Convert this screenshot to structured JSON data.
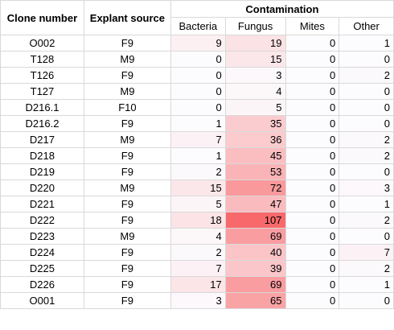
{
  "header": {
    "clone_number": "Clone number",
    "explant_source": "Explant source",
    "contamination": "Contamination",
    "bacteria": "Bacteria",
    "fungus": "Fungus",
    "mites": "Mites",
    "other": "Other"
  },
  "colors": {
    "heat_max": "#f8696b",
    "heat_min": "#fcfcff",
    "grid": "#d9d9d9"
  },
  "rows": [
    {
      "clone": "O002",
      "source": "F9",
      "bacteria": 9,
      "fungus": 19,
      "mites": 0,
      "other": 1
    },
    {
      "clone": "T128",
      "source": "M9",
      "bacteria": 0,
      "fungus": 15,
      "mites": 0,
      "other": 0
    },
    {
      "clone": "T126",
      "source": "F9",
      "bacteria": 0,
      "fungus": 3,
      "mites": 0,
      "other": 2
    },
    {
      "clone": "T127",
      "source": "M9",
      "bacteria": 0,
      "fungus": 4,
      "mites": 0,
      "other": 0
    },
    {
      "clone": "D216.1",
      "source": "F10",
      "bacteria": 0,
      "fungus": 5,
      "mites": 0,
      "other": 0
    },
    {
      "clone": "D216.2",
      "source": "F9",
      "bacteria": 1,
      "fungus": 35,
      "mites": 0,
      "other": 0
    },
    {
      "clone": "D217",
      "source": "M9",
      "bacteria": 7,
      "fungus": 36,
      "mites": 0,
      "other": 2
    },
    {
      "clone": "D218",
      "source": "F9",
      "bacteria": 1,
      "fungus": 45,
      "mites": 0,
      "other": 2
    },
    {
      "clone": "D219",
      "source": "F9",
      "bacteria": 2,
      "fungus": 53,
      "mites": 0,
      "other": 0
    },
    {
      "clone": "D220",
      "source": "M9",
      "bacteria": 15,
      "fungus": 72,
      "mites": 0,
      "other": 3
    },
    {
      "clone": "D221",
      "source": "F9",
      "bacteria": 5,
      "fungus": 47,
      "mites": 0,
      "other": 1
    },
    {
      "clone": "D222",
      "source": "F9",
      "bacteria": 18,
      "fungus": 107,
      "mites": 0,
      "other": 2
    },
    {
      "clone": "D223",
      "source": "M9",
      "bacteria": 4,
      "fungus": 69,
      "mites": 0,
      "other": 0
    },
    {
      "clone": "D224",
      "source": "F9",
      "bacteria": 2,
      "fungus": 40,
      "mites": 0,
      "other": 7
    },
    {
      "clone": "D225",
      "source": "F9",
      "bacteria": 7,
      "fungus": 39,
      "mites": 0,
      "other": 2
    },
    {
      "clone": "D226",
      "source": "F9",
      "bacteria": 17,
      "fungus": 69,
      "mites": 0,
      "other": 1
    },
    {
      "clone": "O001",
      "source": "F9",
      "bacteria": 3,
      "fungus": 65,
      "mites": 0,
      "other": 0
    }
  ]
}
